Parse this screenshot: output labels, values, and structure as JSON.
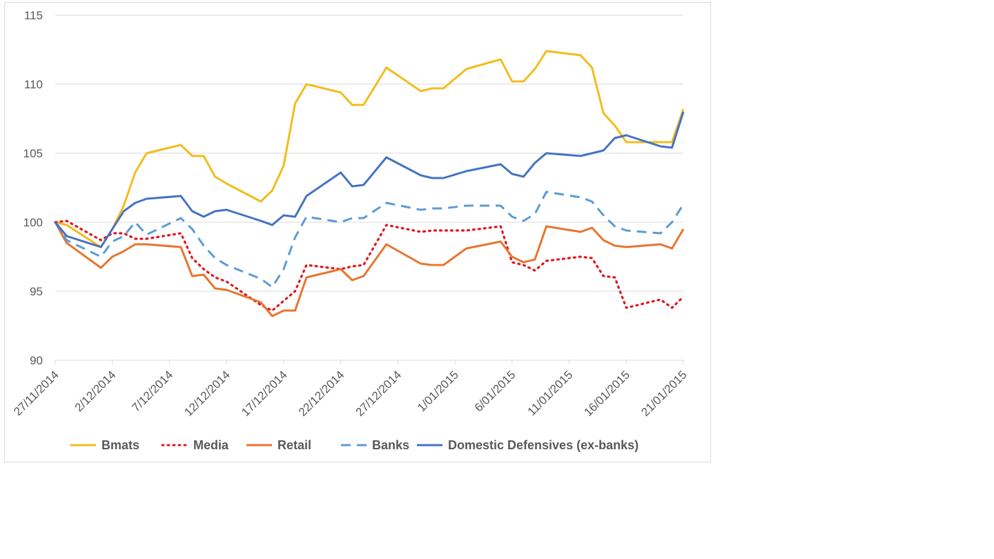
{
  "chart_data": {
    "type": "line",
    "title": "",
    "xlabel": "",
    "ylabel": "",
    "ylim": [
      90,
      115
    ],
    "yticks": [
      90,
      95,
      100,
      105,
      110,
      115
    ],
    "xlim": [
      "2014-11-27",
      "2015-01-21"
    ],
    "xtick_labels": [
      "27/11/2014",
      "2/12/2014",
      "7/12/2014",
      "12/12/2014",
      "17/12/2014",
      "22/12/2014",
      "27/12/2014",
      "1/01/2015",
      "6/01/2015",
      "11/01/2015",
      "16/01/2015",
      "21/01/2015"
    ],
    "xtick_dates": [
      "2014-11-27",
      "2014-12-02",
      "2014-12-07",
      "2014-12-12",
      "2014-12-17",
      "2014-12-22",
      "2014-12-27",
      "2015-01-01",
      "2015-01-06",
      "2015-01-11",
      "2015-01-16",
      "2015-01-21"
    ],
    "grid": "horizontal",
    "legend_position": "bottom",
    "x": [
      "2014-11-27",
      "2014-11-28",
      "2014-12-01",
      "2014-12-02",
      "2014-12-03",
      "2014-12-04",
      "2014-12-05",
      "2014-12-08",
      "2014-12-09",
      "2014-12-10",
      "2014-12-11",
      "2014-12-12",
      "2014-12-15",
      "2014-12-16",
      "2014-12-17",
      "2014-12-18",
      "2014-12-19",
      "2014-12-22",
      "2014-12-23",
      "2014-12-24",
      "2014-12-26",
      "2014-12-29",
      "2014-12-30",
      "2014-12-31",
      "2015-01-02",
      "2015-01-05",
      "2015-01-06",
      "2015-01-07",
      "2015-01-08",
      "2015-01-09",
      "2015-01-12",
      "2015-01-13",
      "2015-01-14",
      "2015-01-15",
      "2015-01-16",
      "2015-01-19",
      "2015-01-20",
      "2015-01-21"
    ],
    "series": [
      {
        "name": "Bmats",
        "color": "#f2bc1c",
        "dash": "solid",
        "values": [
          100,
          99.8,
          98.2,
          99.5,
          101.2,
          103.6,
          105.0,
          105.6,
          104.8,
          104.8,
          103.3,
          102.8,
          101.5,
          102.3,
          104.1,
          108.6,
          110.0,
          109.4,
          108.5,
          108.5,
          111.2,
          109.5,
          109.7,
          109.7,
          111.1,
          111.8,
          110.2,
          110.2,
          111.1,
          112.4,
          112.1,
          111.2,
          107.9,
          107.0,
          105.8,
          105.8,
          105.8,
          108.2
        ]
      },
      {
        "name": "Media",
        "color": "#e0161e",
        "dash": "dotted",
        "values": [
          100,
          100.1,
          98.7,
          99.2,
          99.2,
          98.8,
          98.8,
          99.2,
          97.4,
          96.6,
          96.0,
          95.7,
          94.0,
          93.6,
          94.3,
          95.0,
          96.9,
          96.6,
          96.8,
          96.9,
          99.8,
          99.3,
          99.4,
          99.4,
          99.4,
          99.7,
          97.1,
          96.9,
          96.5,
          97.2,
          97.5,
          97.4,
          96.1,
          96.0,
          93.8,
          94.4,
          93.8,
          94.6
        ]
      },
      {
        "name": "Retail",
        "color": "#e8742d",
        "dash": "solid",
        "values": [
          100,
          98.5,
          96.7,
          97.5,
          97.9,
          98.4,
          98.4,
          98.2,
          96.1,
          96.2,
          95.2,
          95.1,
          94.2,
          93.2,
          93.6,
          93.6,
          96.0,
          96.6,
          95.8,
          96.1,
          98.4,
          97.0,
          96.9,
          96.9,
          98.1,
          98.6,
          97.5,
          97.1,
          97.3,
          99.7,
          99.3,
          99.6,
          98.7,
          98.3,
          98.2,
          98.4,
          98.1,
          99.5
        ]
      },
      {
        "name": "Banks",
        "color": "#5b9bd5",
        "dash": "dashed",
        "values": [
          100,
          98.7,
          97.5,
          98.6,
          99.0,
          100.0,
          99.1,
          100.3,
          99.5,
          98.3,
          97.4,
          96.9,
          95.9,
          95.3,
          96.6,
          98.9,
          100.4,
          100.0,
          100.3,
          100.3,
          101.4,
          100.9,
          101.0,
          101.0,
          101.2,
          101.2,
          100.4,
          100.1,
          100.6,
          102.2,
          101.8,
          101.5,
          100.5,
          99.7,
          99.4,
          99.2,
          100.0,
          101.3
        ]
      },
      {
        "name": "Domestic Defensives (ex-banks)",
        "color": "#4472c4",
        "dash": "solid",
        "values": [
          100,
          99.0,
          98.2,
          99.5,
          100.8,
          101.4,
          101.7,
          101.9,
          100.8,
          100.4,
          100.8,
          100.9,
          100.1,
          99.8,
          100.5,
          100.4,
          101.9,
          103.6,
          102.6,
          102.7,
          104.7,
          103.4,
          103.2,
          103.2,
          103.7,
          104.2,
          103.5,
          103.3,
          104.3,
          105.0,
          104.8,
          105.0,
          105.2,
          106.1,
          106.3,
          105.5,
          105.4,
          108.0
        ]
      }
    ]
  }
}
